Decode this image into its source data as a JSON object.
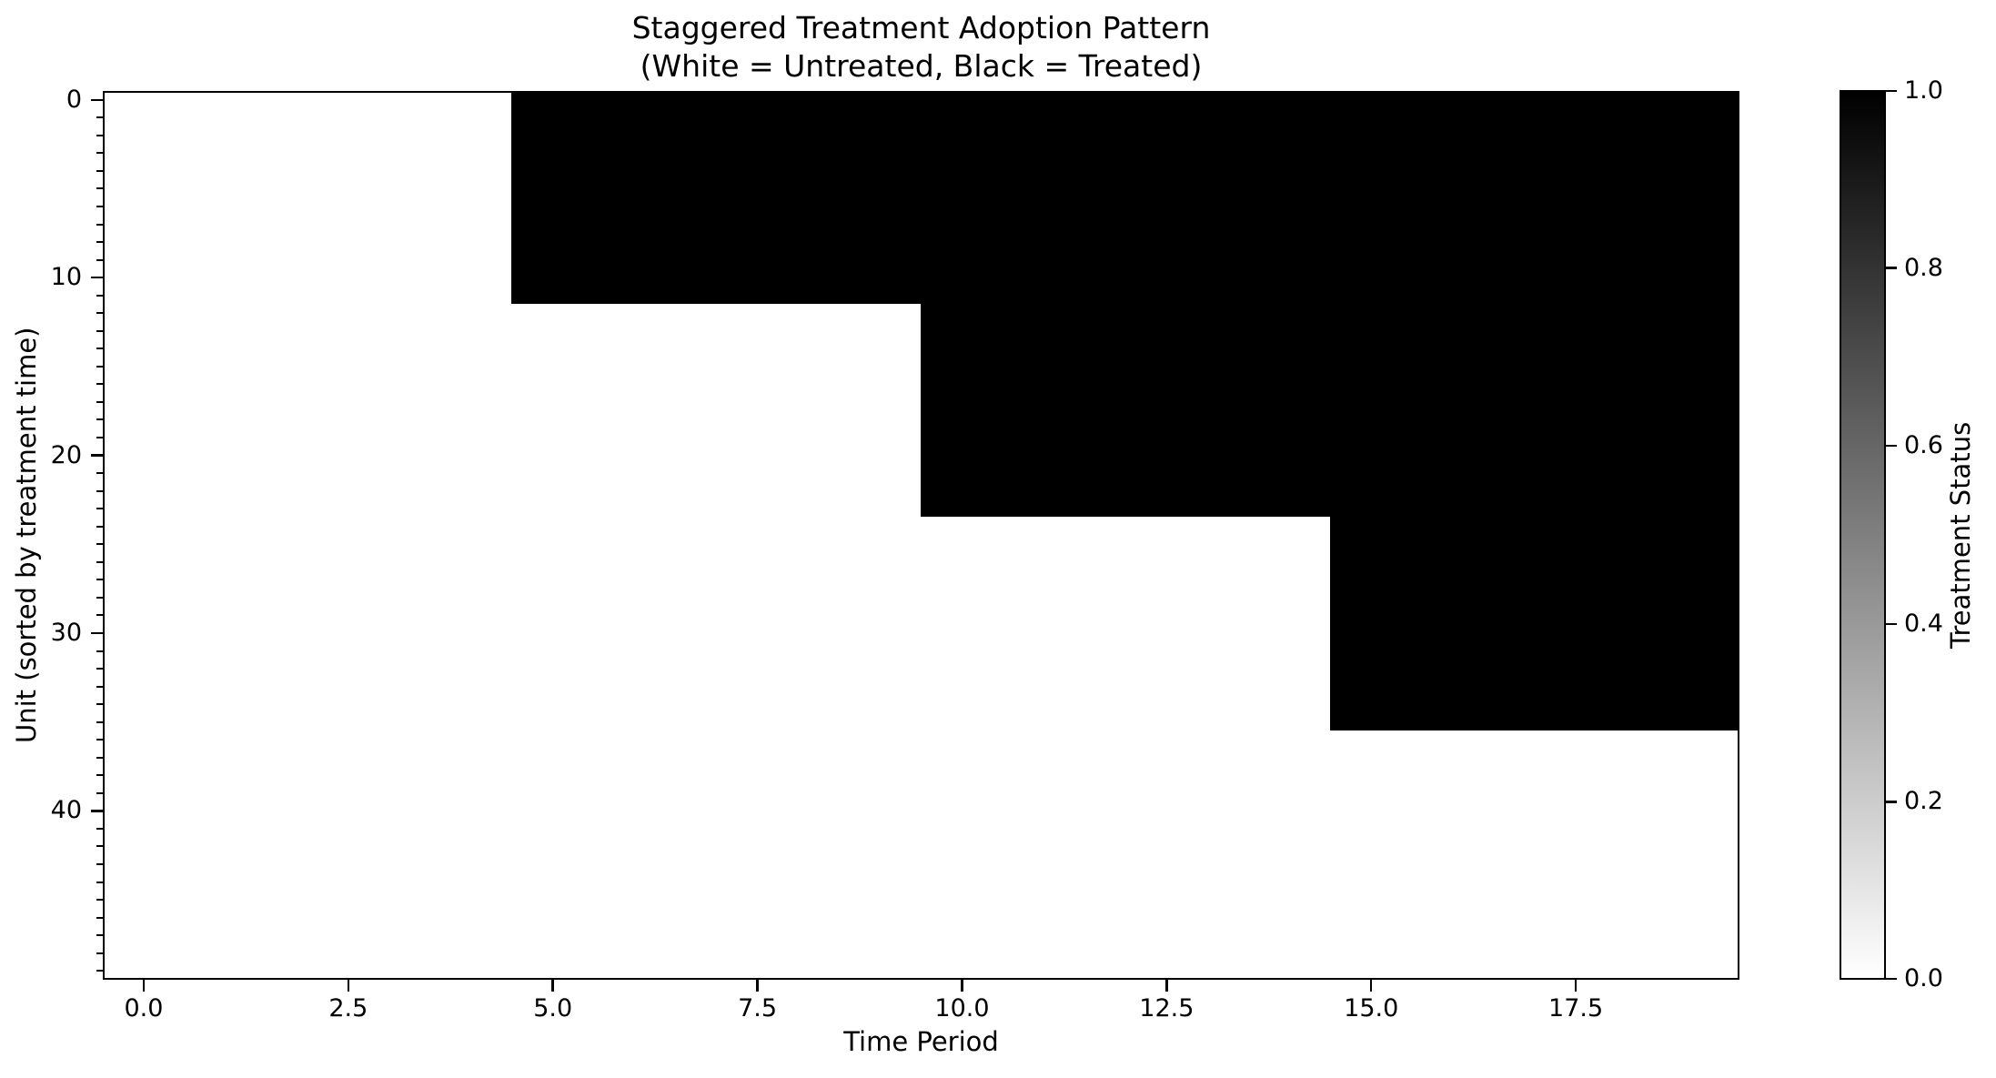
{
  "title": {
    "line1": "Staggered Treatment Adoption Pattern",
    "line2": "(White = Untreated, Black = Treated)"
  },
  "chart_data": {
    "type": "heatmap",
    "title": "Staggered Treatment Adoption Pattern\n(White = Untreated, Black = Treated)",
    "xlabel": "Time Period",
    "ylabel": "Unit (sorted by treatment time)",
    "n_units": 50,
    "n_periods": 20,
    "x_range": [
      -0.5,
      19.5
    ],
    "y_range": [
      -0.5,
      49.5
    ],
    "x_tick_labels": [
      "0.0",
      "2.5",
      "5.0",
      "7.5",
      "10.0",
      "12.5",
      "15.0",
      "17.5"
    ],
    "x_tick_values": [
      0,
      2.5,
      5,
      7.5,
      10,
      12.5,
      15,
      17.5
    ],
    "y_tick_labels": [
      "0",
      "10",
      "20",
      "30",
      "40"
    ],
    "y_tick_values": [
      0,
      10,
      20,
      30,
      40
    ],
    "y_minor_tick_step": 1,
    "grid": false,
    "colors": {
      "treated": "#000000",
      "untreated": "#ffffff"
    },
    "cohorts": [
      {
        "units": [
          0,
          11
        ],
        "first_treated_period": 5
      },
      {
        "units": [
          12,
          23
        ],
        "first_treated_period": 10
      },
      {
        "units": [
          24,
          35
        ],
        "first_treated_period": 15
      },
      {
        "units": [
          36,
          49
        ],
        "first_treated_period": null
      }
    ],
    "colorbar": {
      "label": "Treatment Status",
      "min": 0.0,
      "max": 1.0,
      "tick_labels": [
        "1.0",
        "0.8",
        "0.6",
        "0.4",
        "0.2",
        "0.0"
      ],
      "tick_values": [
        1.0,
        0.8,
        0.6,
        0.4,
        0.2,
        0.0
      ]
    }
  }
}
